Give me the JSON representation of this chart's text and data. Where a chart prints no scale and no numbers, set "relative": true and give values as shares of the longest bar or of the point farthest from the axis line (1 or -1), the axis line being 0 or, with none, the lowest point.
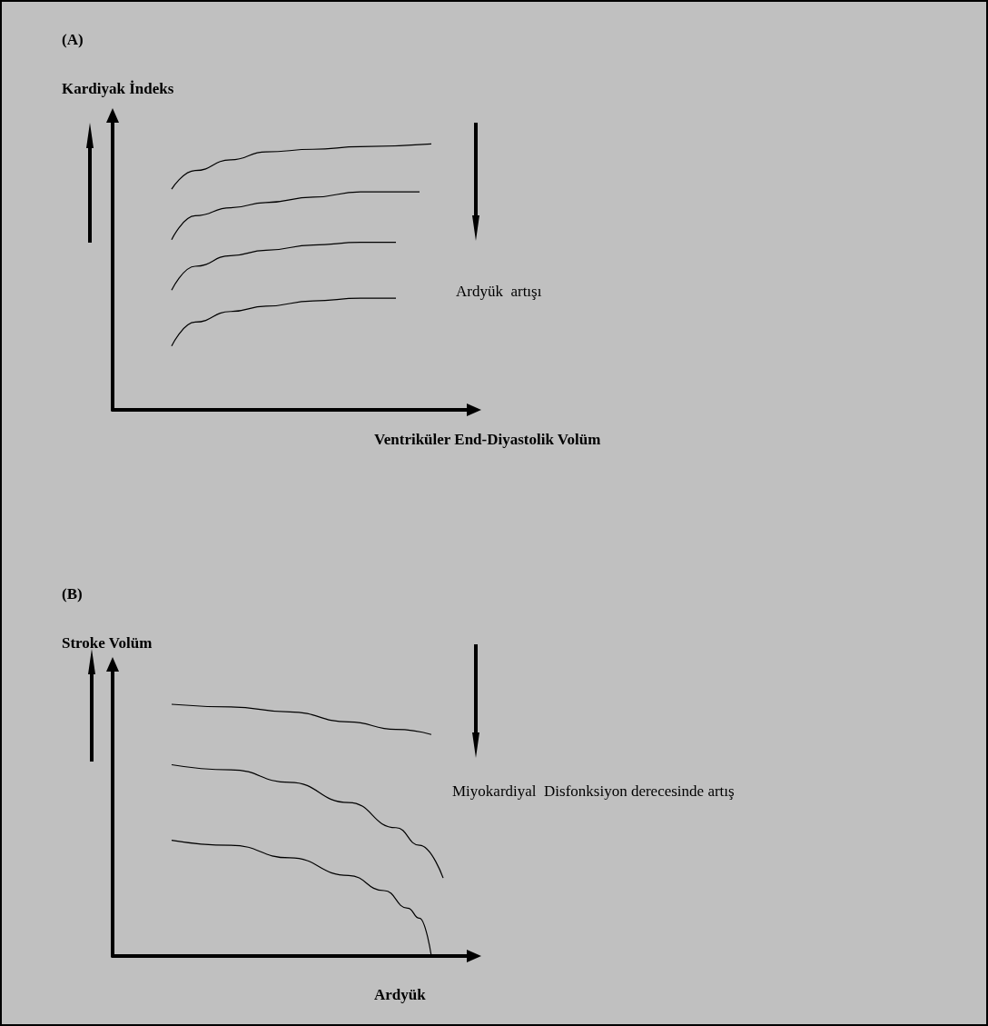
{
  "chart_data": [
    {
      "type": "line",
      "title": "(A)",
      "ylabel": "Kardiyak İndeks",
      "xlabel": "Ventriküler End-Diyastolik Volüm",
      "relative": true,
      "grid": false,
      "annotations": [
        "Ardyük  artışı"
      ],
      "categories": [
        null,
        null,
        null,
        null,
        null,
        null,
        null,
        null,
        null,
        null,
        null,
        null,
        null,
        null,
        null,
        null,
        null,
        null,
        null,
        null,
        null,
        null,
        null,
        null,
        null,
        null,
        null,
        null,
        null,
        null,
        null
      ],
      "series": [
        {
          "color": "#000000",
          "values": [
            null,
            null,
            null,
            null,
            null,
            0.83,
            null,
            0.9,
            null,
            null,
            0.94,
            null,
            null,
            0.97,
            null,
            null,
            null,
            0.98,
            null,
            null,
            null,
            0.99,
            null,
            null,
            null,
            null,
            null,
            1.0,
            null,
            null,
            null
          ]
        },
        {
          "color": "#000000",
          "values": [
            null,
            null,
            null,
            null,
            null,
            0.64,
            null,
            0.73,
            null,
            null,
            0.76,
            null,
            null,
            0.78,
            null,
            null,
            null,
            0.8,
            null,
            null,
            null,
            0.82,
            null,
            null,
            null,
            null,
            0.82,
            null,
            null,
            null,
            null
          ]
        },
        {
          "color": "#000000",
          "values": [
            null,
            null,
            null,
            null,
            null,
            0.45,
            null,
            0.54,
            null,
            null,
            0.58,
            null,
            null,
            0.6,
            null,
            null,
            null,
            0.62,
            null,
            null,
            null,
            0.63,
            null,
            null,
            0.63,
            null,
            null,
            null,
            null,
            null,
            null
          ]
        },
        {
          "color": "#000000",
          "values": [
            null,
            null,
            null,
            null,
            null,
            0.24,
            null,
            0.33,
            null,
            null,
            0.37,
            null,
            null,
            0.39,
            null,
            null,
            null,
            0.41,
            null,
            null,
            null,
            0.42,
            null,
            null,
            0.42,
            null,
            null,
            null,
            null,
            null,
            null
          ]
        }
      ]
    },
    {
      "type": "line",
      "title": "(B)",
      "ylabel": "Stroke Volüm",
      "xlabel": "Ardyük",
      "relative": true,
      "grid": false,
      "annotations": [
        "Miyokardiyal  Disfonksiyon derecesinde artış"
      ],
      "categories": [
        null,
        null,
        null,
        null,
        null,
        null,
        null,
        null,
        null,
        null,
        null,
        null,
        null,
        null,
        null,
        null,
        null,
        null,
        null,
        null,
        null,
        null,
        null,
        null,
        null,
        null,
        null,
        null,
        null,
        null,
        null
      ],
      "series": [
        {
          "color": "#000000",
          "values": [
            null,
            null,
            null,
            null,
            null,
            1.0,
            null,
            null,
            null,
            null,
            0.99,
            null,
            null,
            null,
            null,
            0.97,
            null,
            null,
            null,
            null,
            0.93,
            null,
            null,
            null,
            0.9,
            null,
            null,
            0.88,
            null,
            null,
            null
          ]
        },
        {
          "color": "#000000",
          "values": [
            null,
            null,
            null,
            null,
            null,
            0.76,
            null,
            null,
            null,
            null,
            0.74,
            null,
            null,
            null,
            null,
            0.69,
            null,
            null,
            null,
            null,
            0.61,
            null,
            null,
            null,
            0.51,
            null,
            0.44,
            null,
            0.31,
            null,
            null
          ]
        },
        {
          "color": "#000000",
          "values": [
            null,
            null,
            null,
            null,
            null,
            0.46,
            null,
            null,
            null,
            null,
            0.44,
            null,
            null,
            null,
            null,
            0.39,
            null,
            null,
            null,
            null,
            0.32,
            null,
            null,
            0.26,
            null,
            0.19,
            0.15,
            0,
            null,
            null,
            null
          ]
        }
      ]
    }
  ]
}
